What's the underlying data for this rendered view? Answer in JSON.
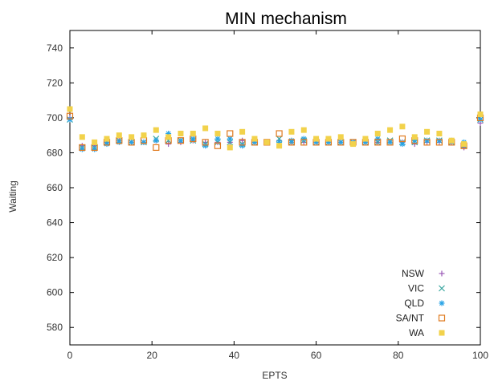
{
  "chart_data": {
    "type": "scatter",
    "title": "MIN mechanism",
    "xlabel": "EPTS",
    "ylabel": "Waiting",
    "xlim": [
      0,
      100
    ],
    "ylim": [
      570,
      750
    ],
    "xticks": [
      0,
      20,
      40,
      60,
      80,
      100
    ],
    "yticks": [
      580,
      600,
      620,
      640,
      660,
      680,
      700,
      720,
      740
    ],
    "grid": false,
    "legend_position": "bottom-right",
    "x": [
      0,
      3,
      6,
      9,
      12,
      15,
      18,
      21,
      24,
      27,
      30,
      33,
      36,
      39,
      42,
      45,
      48,
      51,
      54,
      57,
      60,
      63,
      66,
      69,
      72,
      75,
      78,
      81,
      84,
      87,
      90,
      93,
      96,
      100
    ],
    "series": [
      {
        "name": "NSW",
        "color": "#9b59b6",
        "marker": "plus",
        "values": [
          700,
          684,
          684,
          686,
          687,
          686,
          686,
          687,
          685,
          686,
          687,
          686,
          686,
          686,
          687,
          686,
          686,
          687,
          686,
          686,
          686,
          686,
          686,
          686,
          686,
          686,
          686,
          686,
          685,
          686,
          686,
          686,
          683,
          697
        ]
      },
      {
        "name": "VIC",
        "color": "#3aa7a0",
        "marker": "x",
        "values": [
          699,
          683,
          683,
          686,
          687,
          686,
          686,
          688,
          687,
          687,
          687,
          685,
          686,
          686,
          685,
          686,
          686,
          688,
          686,
          687,
          686,
          686,
          686,
          686,
          686,
          686,
          687,
          686,
          686,
          687,
          687,
          686,
          684,
          699
        ]
      },
      {
        "name": "QLD",
        "color": "#29a3e6",
        "marker": "star",
        "values": [
          699,
          682,
          682,
          685,
          686,
          686,
          686,
          687,
          691,
          687,
          688,
          684,
          688,
          688,
          684,
          686,
          686,
          686,
          687,
          688,
          686,
          686,
          686,
          686,
          686,
          688,
          686,
          685,
          687,
          687,
          687,
          687,
          686,
          699
        ]
      },
      {
        "name": "SA/NT",
        "color": "#e07a1f",
        "marker": "square-open",
        "values": [
          701,
          683,
          683,
          686,
          687,
          686,
          687,
          683,
          687,
          687,
          688,
          686,
          684,
          691,
          686,
          686,
          686,
          691,
          686,
          686,
          686,
          686,
          686,
          686,
          686,
          686,
          686,
          688,
          687,
          686,
          686,
          686,
          684,
          700
        ]
      },
      {
        "name": "WA",
        "color": "#f2d24b",
        "marker": "square",
        "values": [
          705,
          689,
          686,
          688,
          690,
          689,
          690,
          693,
          689,
          691,
          691,
          694,
          691,
          683,
          692,
          688,
          686,
          684,
          692,
          693,
          688,
          688,
          689,
          685,
          688,
          691,
          693,
          695,
          689,
          692,
          691,
          687,
          685,
          702
        ]
      }
    ]
  }
}
